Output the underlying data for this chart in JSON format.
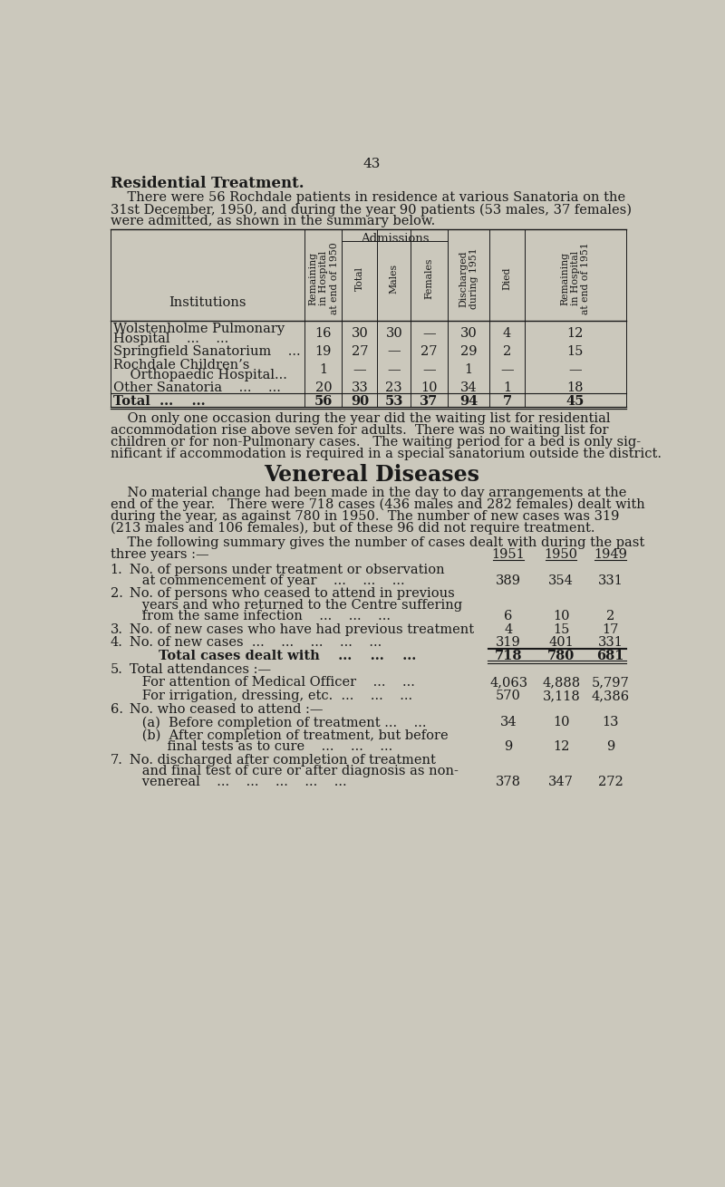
{
  "bg_color": "#cbc8bc",
  "page_number": "43",
  "title": "Residential Treatment.",
  "intro_text": [
    "    There were 56 Rochdale patients in residence at various Sanatoria on the",
    "31st December, 1950, and during the year 90 patients (53 males, 37 females)",
    "were admitted, as shown in the summary below."
  ],
  "admissions_label": "Admissions",
  "rot_headers": [
    "Remaining\nin Hospital\nat end of 1950",
    "Total",
    "Males",
    "Females",
    "Discharged\nduring 1951",
    "Died",
    "Remaining\nin Hospital\nat end of 1951"
  ],
  "table_rows": [
    [
      "Wolstenholme Pulmonary",
      "Hospital    ...    ...",
      "16",
      "30",
      "30",
      "—",
      "30",
      "4",
      "12"
    ],
    [
      "Springfield Sanatorium    ...",
      "",
      "19",
      "27",
      "—",
      "27",
      "29",
      "2",
      "15"
    ],
    [
      "Rochdale Children’s",
      "    Orthopaedic Hospital...",
      "1",
      "—",
      "—",
      "—",
      "1",
      "—",
      "—"
    ],
    [
      "Other Sanatoria    ...    ...",
      "",
      "20",
      "33",
      "23",
      "10",
      "34",
      "1",
      "18"
    ],
    [
      "Total  ...    ...",
      "",
      "56",
      "90",
      "53",
      "37",
      "94",
      "7",
      "45"
    ]
  ],
  "para1": [
    "    On only one occasion during the year did the waiting list for residential",
    "accommodation rise above seven for adults.  There was no waiting list for",
    "children or for non-Pulmonary cases.   The waiting period for a bed is only sig-",
    "nificant if accommodation is required in a special sanatorium outside the district."
  ],
  "vd_title": "Venereal Diseases",
  "vd_para1": [
    "    No material change had been made in the day to day arrangements at the",
    "end of the year.   There were 718 cases (436 males and 282 females) dealt with",
    "during the year, as against 780 in 1950.  The number of new cases was 319",
    "(213 males and 106 females), but of these 96 did not require treatment."
  ],
  "vd_para2_intro": "    The following summary gives the number of cases dealt with during the past",
  "vd_para2_years": "three years :—",
  "vd_years": [
    "1951",
    "1950",
    "1949"
  ],
  "vd_items": [
    {
      "num": "1.",
      "label_lines": [
        "   No. of persons under treatment or observation",
        "      at commencement of year    ...    ...    ..."
      ],
      "value_on_line": 1,
      "values": [
        "389",
        "354",
        "331"
      ],
      "is_total": false,
      "line_above": false,
      "line_below": false
    },
    {
      "num": "2.",
      "label_lines": [
        "   No. of persons who ceased to attend in previous",
        "      years and who returned to the Centre suffering",
        "      from the same infection    ...    ...    ..."
      ],
      "value_on_line": 2,
      "values": [
        "6",
        "10",
        "2"
      ],
      "is_total": false,
      "line_above": false,
      "line_below": false
    },
    {
      "num": "3.",
      "label_lines": [
        "   No. of new cases who have had previous treatment"
      ],
      "value_on_line": 0,
      "values": [
        "4",
        "15",
        "17"
      ],
      "is_total": false,
      "line_above": false,
      "line_below": false
    },
    {
      "num": "4.",
      "label_lines": [
        "   No. of new cases  ...    ...    ...    ...    ..."
      ],
      "value_on_line": 0,
      "values": [
        "319",
        "401",
        "331"
      ],
      "is_total": false,
      "line_above": false,
      "line_below": true
    },
    {
      "num": "",
      "label_lines": [
        "         Total cases dealt with    ...    ...    ..."
      ],
      "value_on_line": 0,
      "values": [
        "718",
        "780",
        "681"
      ],
      "is_total": true,
      "line_above": false,
      "line_below": true
    },
    {
      "num": "5.",
      "label_lines": [
        "   Total attendances :—"
      ],
      "value_on_line": -1,
      "values": [],
      "is_total": false,
      "line_above": false,
      "line_below": false
    },
    {
      "num": "",
      "label_lines": [
        "      For attention of Medical Officer    ...    ..."
      ],
      "value_on_line": 0,
      "values": [
        "4,063",
        "4,888",
        "5,797"
      ],
      "is_total": false,
      "line_above": false,
      "line_below": false
    },
    {
      "num": "",
      "label_lines": [
        "      For irrigation, dressing, etc.  ...    ...    ..."
      ],
      "value_on_line": 0,
      "values": [
        "570",
        "3,118",
        "4,386"
      ],
      "is_total": false,
      "line_above": false,
      "line_below": false
    },
    {
      "num": "6.",
      "label_lines": [
        "   No. who ceased to attend :—"
      ],
      "value_on_line": -1,
      "values": [],
      "is_total": false,
      "line_above": false,
      "line_below": false
    },
    {
      "num": "",
      "label_lines": [
        "      (a)  Before completion of treatment ...    ..."
      ],
      "value_on_line": 0,
      "values": [
        "34",
        "10",
        "13"
      ],
      "is_total": false,
      "line_above": false,
      "line_below": false
    },
    {
      "num": "",
      "label_lines": [
        "      (b)  After completion of treatment, but before",
        "            final tests as to cure    ...    ...    ..."
      ],
      "value_on_line": 1,
      "values": [
        "9",
        "12",
        "9"
      ],
      "is_total": false,
      "line_above": false,
      "line_below": false
    },
    {
      "num": "7.",
      "label_lines": [
        "   No. discharged after completion of treatment",
        "      and final test of cure or after diagnosis as non-",
        "      venereal    ...    ...    ...    ...    ..."
      ],
      "value_on_line": 2,
      "values": [
        "378",
        "347",
        "272"
      ],
      "is_total": false,
      "line_above": false,
      "line_below": false
    }
  ]
}
